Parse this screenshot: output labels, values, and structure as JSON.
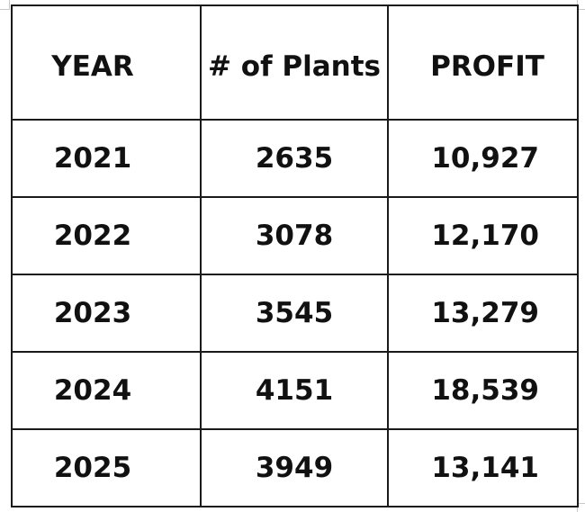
{
  "table": {
    "headers": [
      "YEAR",
      "# of Plants",
      "PROFIT"
    ],
    "rows": [
      [
        "2021",
        "2635",
        "10,927"
      ],
      [
        "2022",
        "3078",
        "12,170"
      ],
      [
        "2023",
        "3545",
        "13,279"
      ],
      [
        "2024",
        "4151",
        "18,539"
      ],
      [
        "2025",
        "3949",
        "13,141"
      ]
    ]
  }
}
